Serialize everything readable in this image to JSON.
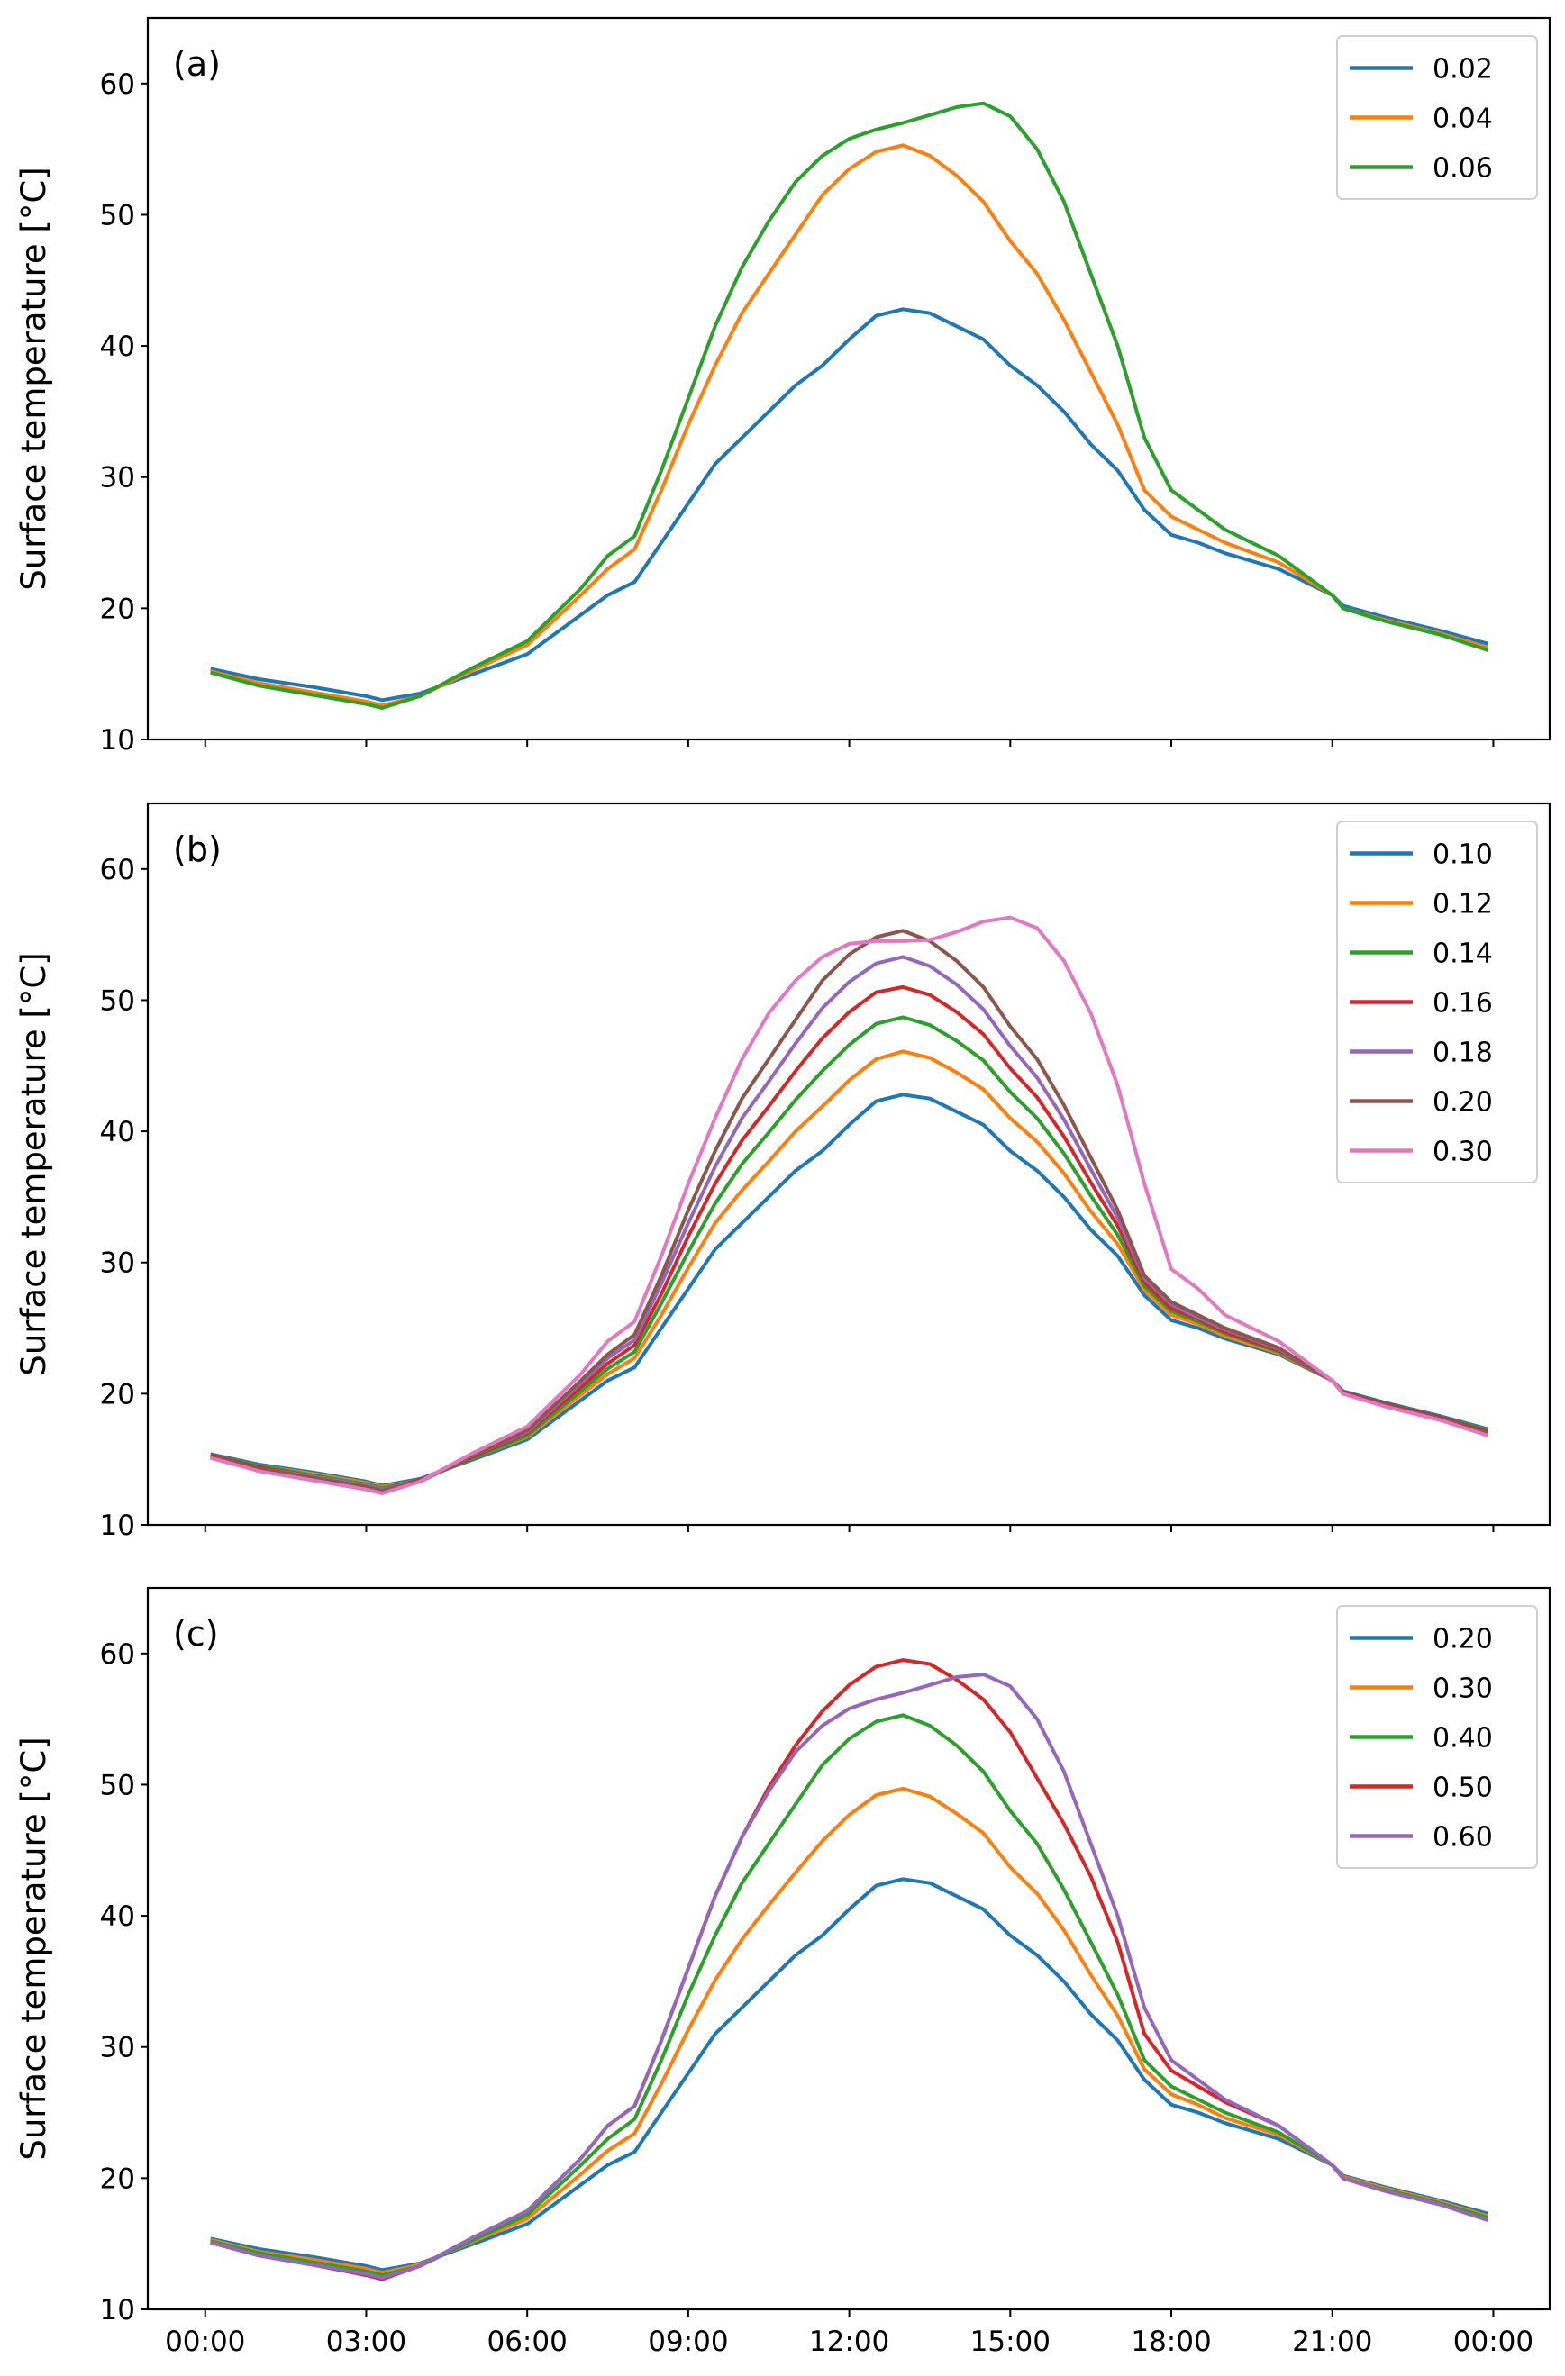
{
  "chart_data": [
    {
      "type": "line",
      "panel_label": "(a)",
      "ylabel": "Surface temperature [°C]",
      "xlabel": "",
      "ylim": [
        10,
        65
      ],
      "xlim_hours": [
        -1.07,
        25.05
      ],
      "yticks": [
        10,
        20,
        30,
        40,
        50,
        60
      ],
      "legend_position": "top-right",
      "x_hours": [
        0.1,
        1,
        2,
        3,
        3.3,
        4,
        5,
        6,
        7,
        7.5,
        8,
        8.5,
        9,
        9.5,
        10,
        10.5,
        11,
        11.5,
        12,
        12.5,
        13,
        13.5,
        14,
        14.5,
        15,
        15.5,
        16,
        16.5,
        17,
        17.5,
        18,
        18.5,
        19,
        20,
        21,
        21.2,
        22,
        23,
        23.9
      ],
      "series": [
        {
          "name": "0.02",
          "color": "#1f77b4",
          "values": [
            15.4,
            14.6,
            14.0,
            13.3,
            13.0,
            13.5,
            15.0,
            16.5,
            19.5,
            21,
            22,
            25,
            28,
            31,
            33,
            35,
            37,
            38.5,
            40.5,
            42.3,
            42.8,
            42.5,
            41.5,
            40.5,
            38.5,
            37,
            35,
            32.5,
            30.5,
            27.5,
            25.6,
            25,
            24.2,
            23,
            21,
            20.2,
            19.3,
            18.3,
            17.3
          ]
        },
        {
          "name": "0.04",
          "color": "#ff7f0e",
          "values": [
            15.2,
            14.3,
            13.6,
            12.9,
            12.6,
            13.3,
            15.3,
            17.2,
            21,
            23,
            24.5,
            29,
            34,
            38.5,
            42.5,
            45.5,
            48.5,
            51.5,
            53.5,
            54.8,
            55.3,
            54.5,
            53,
            51,
            48,
            45.5,
            42,
            38,
            34,
            29,
            27,
            26,
            25,
            23.5,
            21,
            20,
            19.1,
            18.1,
            17
          ]
        },
        {
          "name": "0.06",
          "color": "#2ca02c",
          "values": [
            15.1,
            14.1,
            13.4,
            12.7,
            12.4,
            13.3,
            15.5,
            17.5,
            21.5,
            24,
            25.5,
            30.5,
            36,
            41.5,
            46,
            49.5,
            52.5,
            54.5,
            55.8,
            56.5,
            57,
            57.6,
            58.2,
            58.5,
            57.5,
            55,
            51,
            45.5,
            40,
            33,
            29,
            27.5,
            26,
            24,
            21,
            20,
            19,
            18,
            16.8
          ]
        }
      ]
    },
    {
      "type": "line",
      "panel_label": "(b)",
      "ylabel": "Surface temperature [°C]",
      "xlabel": "",
      "ylim": [
        10,
        65
      ],
      "xlim_hours": [
        -1.07,
        25.05
      ],
      "yticks": [
        10,
        20,
        30,
        40,
        50,
        60
      ],
      "legend_position": "top-right",
      "x_hours": [
        0.1,
        1,
        2,
        3,
        3.3,
        4,
        5,
        6,
        7,
        7.5,
        8,
        8.5,
        9,
        9.5,
        10,
        10.5,
        11,
        11.5,
        12,
        12.5,
        13,
        13.5,
        14,
        14.5,
        15,
        15.5,
        16,
        16.5,
        17,
        17.5,
        18,
        18.5,
        19,
        20,
        21,
        21.2,
        22,
        23,
        23.9
      ],
      "series": [
        {
          "name": "0.10",
          "color": "#1f77b4",
          "values": [
            15.4,
            14.6,
            14.0,
            13.3,
            13.0,
            13.5,
            15.0,
            16.5,
            19.5,
            21,
            22,
            25,
            28,
            31,
            33,
            35,
            37,
            38.5,
            40.5,
            42.3,
            42.8,
            42.5,
            41.5,
            40.5,
            38.5,
            37,
            35,
            32.5,
            30.5,
            27.5,
            25.6,
            25,
            24.2,
            23,
            21,
            20.2,
            19.3,
            18.3,
            17.3
          ]
        },
        {
          "name": "0.12",
          "color": "#ff7f0e",
          "values": [
            15.3,
            14.5,
            13.9,
            13.2,
            12.9,
            13.4,
            15.1,
            16.7,
            19.9,
            21.5,
            22.7,
            26,
            29.6,
            33,
            35.5,
            37.7,
            40,
            41.9,
            43.9,
            45.5,
            46.1,
            45.6,
            44.5,
            43.2,
            41,
            39.2,
            36.8,
            33.9,
            31.4,
            27.9,
            26,
            25.3,
            24.4,
            23.1,
            21,
            20.1,
            19.2,
            18.2,
            17.2
          ]
        },
        {
          "name": "0.14",
          "color": "#2ca02c",
          "values": [
            15.3,
            14.5,
            13.8,
            13.1,
            12.8,
            13.4,
            15.1,
            16.8,
            20.2,
            21.9,
            23.2,
            26.9,
            30.8,
            34.5,
            37.5,
            39.9,
            42.4,
            44.6,
            46.6,
            48.2,
            48.7,
            48.1,
            46.9,
            45.4,
            43,
            41,
            38.3,
            35.1,
            32.1,
            28.2,
            26.3,
            25.5,
            24.6,
            23.2,
            21,
            20.1,
            19.2,
            18.2,
            17.2
          ]
        },
        {
          "name": "0.16",
          "color": "#d62728",
          "values": [
            15.3,
            14.4,
            13.7,
            13,
            12.7,
            13.4,
            15.2,
            17,
            20.5,
            22.3,
            23.7,
            27.6,
            32,
            36,
            39.3,
            41.9,
            44.6,
            47.1,
            49.1,
            50.6,
            51,
            50.4,
            49.1,
            47.4,
            44.8,
            42.6,
            39.6,
            36.1,
            32.8,
            28.5,
            26.5,
            25.7,
            24.7,
            23.3,
            21,
            20.1,
            19.2,
            18.2,
            17.1
          ]
        },
        {
          "name": "0.18",
          "color": "#9467bd",
          "values": [
            15.2,
            14.3,
            13.7,
            13,
            12.7,
            13.3,
            15.3,
            17.1,
            20.8,
            22.7,
            24.1,
            28.4,
            33,
            37.3,
            41,
            43.8,
            46.7,
            49.4,
            51.4,
            52.8,
            53.3,
            52.6,
            51.2,
            49.3,
            46.5,
            44.1,
            40.9,
            37.1,
            33.4,
            28.8,
            26.8,
            25.8,
            24.9,
            23.4,
            21,
            20,
            19.1,
            18.1,
            17
          ]
        },
        {
          "name": "0.20",
          "color": "#8c564b",
          "values": [
            15.2,
            14.3,
            13.6,
            12.9,
            12.6,
            13.3,
            15.3,
            17.2,
            21,
            23,
            24.5,
            29,
            34,
            38.5,
            42.5,
            45.5,
            48.5,
            51.5,
            53.5,
            54.8,
            55.3,
            54.5,
            53,
            51,
            48,
            45.5,
            42,
            38,
            34,
            29,
            27,
            26,
            25,
            23.5,
            21,
            20,
            19.1,
            18.1,
            17
          ]
        },
        {
          "name": "0.30",
          "color": "#e377c2",
          "values": [
            15.1,
            14.1,
            13.4,
            12.7,
            12.4,
            13.3,
            15.5,
            17.5,
            21.5,
            24,
            25.5,
            30.5,
            36,
            41,
            45.5,
            49,
            51.5,
            53.3,
            54.3,
            54.5,
            54.5,
            54.6,
            55.2,
            56,
            56.3,
            55.5,
            53,
            49,
            43.5,
            36,
            29.5,
            28,
            26,
            24,
            21,
            20,
            19,
            18,
            16.8
          ]
        }
      ]
    },
    {
      "type": "line",
      "panel_label": "(c)",
      "ylabel": "Surface temperature [°C]",
      "xlabel": "",
      "ylim": [
        10,
        65
      ],
      "xlim_hours": [
        -1.07,
        25.05
      ],
      "yticks": [
        10,
        20,
        30,
        40,
        50,
        60
      ],
      "xtick_labels": [
        "00:00",
        "03:00",
        "06:00",
        "09:00",
        "12:00",
        "15:00",
        "18:00",
        "21:00",
        "00:00"
      ],
      "legend_position": "top-right",
      "x_hours": [
        0.1,
        1,
        2,
        3,
        3.3,
        4,
        5,
        6,
        7,
        7.5,
        8,
        8.5,
        9,
        9.5,
        10,
        10.5,
        11,
        11.5,
        12,
        12.5,
        13,
        13.5,
        14,
        14.5,
        15,
        15.5,
        16,
        16.5,
        17,
        17.5,
        18,
        18.5,
        19,
        20,
        21,
        21.2,
        22,
        23,
        23.9
      ],
      "series": [
        {
          "name": "0.20",
          "color": "#1f77b4",
          "values": [
            15.4,
            14.6,
            14.0,
            13.3,
            13.0,
            13.5,
            15.0,
            16.5,
            19.5,
            21,
            22,
            25,
            28,
            31,
            33,
            35,
            37,
            38.5,
            40.5,
            42.3,
            42.8,
            42.5,
            41.5,
            40.5,
            38.5,
            37,
            35,
            32.5,
            30.5,
            27.5,
            25.6,
            25,
            24.2,
            23,
            21,
            20.2,
            19.3,
            18.3,
            17.3
          ]
        },
        {
          "name": "0.30",
          "color": "#ff7f0e",
          "values": [
            15.3,
            14.4,
            13.8,
            13.1,
            12.8,
            13.4,
            15.2,
            16.9,
            20.3,
            22.1,
            23.4,
            27.2,
            31.3,
            35.1,
            38.2,
            40.8,
            43.3,
            45.7,
            47.7,
            49.2,
            49.7,
            49.1,
            47.8,
            46.3,
            43.7,
            41.7,
            38.9,
            35.5,
            32.4,
            28.3,
            26.4,
            25.6,
            24.6,
            23.3,
            21,
            20.1,
            19.2,
            18.2,
            17.1
          ]
        },
        {
          "name": "0.40",
          "color": "#2ca02c",
          "values": [
            15.2,
            14.3,
            13.6,
            12.9,
            12.6,
            13.3,
            15.3,
            17.2,
            21,
            23,
            24.5,
            29,
            34,
            38.5,
            42.5,
            45.5,
            48.5,
            51.5,
            53.5,
            54.8,
            55.3,
            54.5,
            53,
            51,
            48,
            45.5,
            42,
            38,
            34,
            29,
            27,
            26,
            25,
            23.5,
            21,
            20,
            19.1,
            18.1,
            17
          ]
        },
        {
          "name": "0.50",
          "color": "#d62728",
          "values": [
            15.1,
            14.1,
            13.4,
            12.6,
            12.3,
            13.3,
            15.5,
            17.5,
            21.5,
            24,
            25.5,
            30.5,
            36,
            41.5,
            46,
            49.8,
            53,
            55.6,
            57.6,
            59,
            59.5,
            59.2,
            58,
            56.5,
            54,
            50.5,
            47,
            43,
            38,
            31,
            28.2,
            27,
            25.8,
            24,
            21,
            20,
            19,
            18,
            16.8
          ]
        },
        {
          "name": "0.60",
          "color": "#9467bd",
          "values": [
            15.1,
            14.1,
            13.4,
            12.7,
            12.4,
            13.3,
            15.5,
            17.5,
            21.5,
            24,
            25.5,
            30.5,
            36,
            41.5,
            46,
            49.5,
            52.5,
            54.5,
            55.8,
            56.5,
            57,
            57.6,
            58.2,
            58.4,
            57.5,
            55,
            51,
            45.5,
            40,
            33,
            29,
            27.5,
            26,
            24,
            21,
            20,
            19,
            18,
            16.8
          ]
        }
      ]
    }
  ]
}
